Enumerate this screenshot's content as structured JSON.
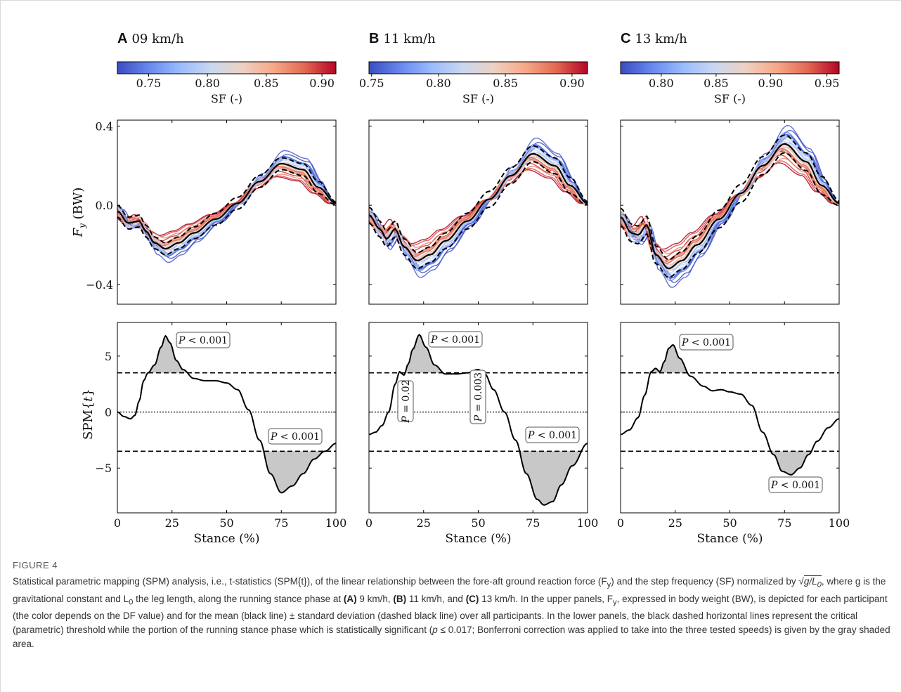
{
  "colors": {
    "cmap": [
      "#3b4cc0",
      "#6788ee",
      "#9abbff",
      "#c9d7f0",
      "#edd1c2",
      "#f7a889",
      "#e26952",
      "#b40426"
    ],
    "mean_line": "#000000",
    "shade": "#c8c8c8"
  },
  "panels": [
    {
      "letter": "A",
      "title": "09 km/h",
      "colorbar": {
        "ticks": [
          "0.75",
          "0.80",
          "0.85",
          "0.90"
        ],
        "label": "SF (-)"
      },
      "fy_ticks": [
        "0.4",
        "0.0",
        "−0.4"
      ],
      "fy_label": "F",
      "fy_label_sub": "y",
      "fy_label_unit": "(BW)",
      "spm_ticks": [
        "5",
        "0",
        "−5"
      ],
      "spm_label": "SPM{",
      "spm_label_t": "t",
      "spm_label_end": "}",
      "x_ticks": [
        "0",
        "25",
        "50",
        "75",
        "100"
      ],
      "x_label": "Stance (%)",
      "annotations": [
        {
          "text": "P < 0.001",
          "orientation": "horizontal"
        },
        {
          "text": "P < 0.001",
          "orientation": "horizontal"
        }
      ]
    },
    {
      "letter": "B",
      "title": "11 km/h",
      "colorbar": {
        "ticks": [
          "0.75",
          "0.80",
          "0.85",
          "0.90"
        ],
        "label": "SF (-)"
      },
      "fy_ticks": [],
      "spm_ticks": [],
      "x_ticks": [
        "0",
        "25",
        "50",
        "75",
        "100"
      ],
      "x_label": "Stance (%)",
      "annotations": [
        {
          "text": "P < 0.001",
          "orientation": "horizontal"
        },
        {
          "text": "P = 0.02",
          "orientation": "vertical"
        },
        {
          "text": "P = 0.003",
          "orientation": "vertical"
        },
        {
          "text": "P < 0.001",
          "orientation": "horizontal"
        }
      ]
    },
    {
      "letter": "C",
      "title": "13 km/h",
      "colorbar": {
        "ticks": [
          "0.80",
          "0.85",
          "0.90",
          "0.95"
        ],
        "label": "SF (-)"
      },
      "fy_ticks": [],
      "spm_ticks": [],
      "x_ticks": [
        "0",
        "25",
        "50",
        "75",
        "100"
      ],
      "x_label": "Stance (%)",
      "annotations": [
        {
          "text": "P < 0.001",
          "orientation": "horizontal"
        },
        {
          "text": "P < 0.001",
          "orientation": "horizontal"
        }
      ]
    }
  ],
  "chart_data": [
    {
      "type": "line",
      "panel": "A",
      "subtitle": "09 km/h",
      "xlabel": "Stance (%)",
      "ylabel": "F_y (BW)",
      "xlim": [
        0,
        100
      ],
      "ylim": [
        -0.5,
        0.43
      ],
      "mean": {
        "x": [
          0,
          5,
          10,
          13,
          17,
          22,
          28,
          35,
          45,
          55,
          65,
          75,
          85,
          92,
          100
        ],
        "y": [
          -0.03,
          -0.09,
          -0.08,
          -0.13,
          -0.19,
          -0.22,
          -0.19,
          -0.14,
          -0.07,
          0.01,
          0.12,
          0.21,
          0.18,
          0.09,
          0.01
        ]
      },
      "sd": 0.03,
      "participant_curves": 30,
      "colorbar_range": [
        0.72,
        0.91
      ]
    },
    {
      "type": "line",
      "panel": "B",
      "subtitle": "11 km/h",
      "xlabel": "Stance (%)",
      "ylabel": "F_y (BW)",
      "xlim": [
        0,
        100
      ],
      "ylim": [
        -0.5,
        0.43
      ],
      "mean": {
        "x": [
          0,
          5,
          8,
          12,
          16,
          22,
          28,
          35,
          45,
          55,
          65,
          75,
          85,
          92,
          100
        ],
        "y": [
          -0.05,
          -0.12,
          -0.17,
          -0.12,
          -0.21,
          -0.28,
          -0.25,
          -0.18,
          -0.08,
          0.03,
          0.15,
          0.26,
          0.2,
          0.1,
          0.01
        ]
      },
      "sd": 0.04,
      "participant_curves": 30,
      "colorbar_range": [
        0.75,
        0.92
      ]
    },
    {
      "type": "line",
      "panel": "C",
      "subtitle": "13 km/h",
      "xlabel": "Stance (%)",
      "ylabel": "F_y (BW)",
      "xlim": [
        0,
        100
      ],
      "ylim": [
        -0.5,
        0.43
      ],
      "mean": {
        "x": [
          0,
          5,
          8,
          12,
          16,
          22,
          28,
          35,
          45,
          55,
          65,
          75,
          85,
          92,
          100
        ],
        "y": [
          -0.06,
          -0.14,
          -0.15,
          -0.1,
          -0.25,
          -0.32,
          -0.28,
          -0.2,
          -0.07,
          0.06,
          0.2,
          0.31,
          0.22,
          0.1,
          0.01
        ]
      },
      "sd": 0.045,
      "participant_curves": 30,
      "colorbar_range": [
        0.76,
        0.96
      ]
    },
    {
      "type": "line",
      "panel": "A",
      "xlabel": "Stance (%)",
      "ylabel": "SPM{t}",
      "xlim": [
        0,
        100
      ],
      "ylim": [
        -9,
        8
      ],
      "threshold": 3.5,
      "t": {
        "x": [
          0,
          3,
          6,
          8,
          10,
          12,
          14,
          17,
          20,
          22,
          24,
          27,
          30,
          35,
          40,
          45,
          50,
          55,
          60,
          65,
          70,
          75,
          80,
          85,
          90,
          95,
          100
        ],
        "y": [
          0,
          -0.4,
          -0.6,
          -0.3,
          1,
          2.8,
          3.5,
          4.2,
          5.8,
          6.8,
          6.2,
          4.6,
          3.8,
          3,
          2.8,
          2.8,
          2.6,
          2,
          0.2,
          -2.5,
          -5.5,
          -7.2,
          -6.6,
          -5.5,
          -4.2,
          -3.5,
          -2.8
        ]
      }
    },
    {
      "type": "line",
      "panel": "B",
      "xlabel": "Stance (%)",
      "ylabel": "SPM{t}",
      "xlim": [
        0,
        100
      ],
      "ylim": [
        -9,
        8
      ],
      "threshold": 3.5,
      "t": {
        "x": [
          0,
          3,
          6,
          9,
          12,
          14,
          16,
          18,
          20,
          23,
          26,
          30,
          35,
          40,
          45,
          50,
          53,
          57,
          62,
          67,
          72,
          77,
          80,
          84,
          88,
          93,
          100
        ],
        "y": [
          -2,
          -1.8,
          -1.2,
          0,
          2.5,
          3.6,
          3.3,
          4.3,
          5.6,
          6.9,
          5.8,
          4.2,
          3.4,
          3.4,
          3.5,
          3.8,
          3.4,
          2,
          0,
          -2.5,
          -5.5,
          -7.8,
          -8.3,
          -8,
          -6.5,
          -4.8,
          -2.8
        ]
      }
    },
    {
      "type": "line",
      "panel": "C",
      "xlabel": "Stance (%)",
      "ylabel": "SPM{t}",
      "xlim": [
        0,
        100
      ],
      "ylim": [
        -9,
        8
      ],
      "threshold": 3.5,
      "t": {
        "x": [
          0,
          4,
          8,
          11,
          14,
          16,
          18,
          20,
          22,
          24,
          27,
          32,
          38,
          42,
          46,
          50,
          55,
          60,
          65,
          70,
          74,
          78,
          82,
          86,
          90,
          95,
          100
        ],
        "y": [
          -2,
          -1.6,
          -0.5,
          1.5,
          3.6,
          3.9,
          3.6,
          4.5,
          5.7,
          6,
          4.8,
          3.2,
          2.3,
          1.9,
          2,
          1.8,
          1.6,
          0.6,
          -1.8,
          -3.8,
          -5.3,
          -5.6,
          -5,
          -3.8,
          -2.6,
          -1.4,
          -0.6
        ]
      }
    }
  ],
  "caption": {
    "label": "FIGURE 4",
    "p1": "Statistical parametric mapping (SPM) analysis, i.e., t-statistics (SPM{t}), of the linear relationship between the fore-aft ground reaction force (F",
    "p1_sub": "y",
    "p2": ") and the step frequency (SF) normalized by",
    "sqrt_expr": "g/L",
    "sqrt_sub": "0",
    "p3": ", where g is the gravitational constant and L",
    "p3_sub": "0",
    "p4": " the leg length, along the running stance phase at ",
    "tag_a": "(A)",
    "speed_a": " 9 km/h, ",
    "tag_b": "(B)",
    "speed_b": " 11 km/h, and ",
    "tag_c": "(C)",
    "speed_c": " 13 km/h. In the upper panels, F",
    "p5_sub": "y",
    "p5": ", expressed in body weight (BW), is depicted for each participant (the color depends on the DF value) and for the mean (black line) ± standard deviation (dashed black line) over all participants. In the lower panels, the black dashed horizontal lines represent the critical (parametric) threshold while the portion of the running stance phase which is statistically significant (",
    "p_sym": "p",
    "p6": " ≤ 0.017; Bonferroni correction was applied to take into the three tested speeds) is given by the gray shaded area."
  }
}
